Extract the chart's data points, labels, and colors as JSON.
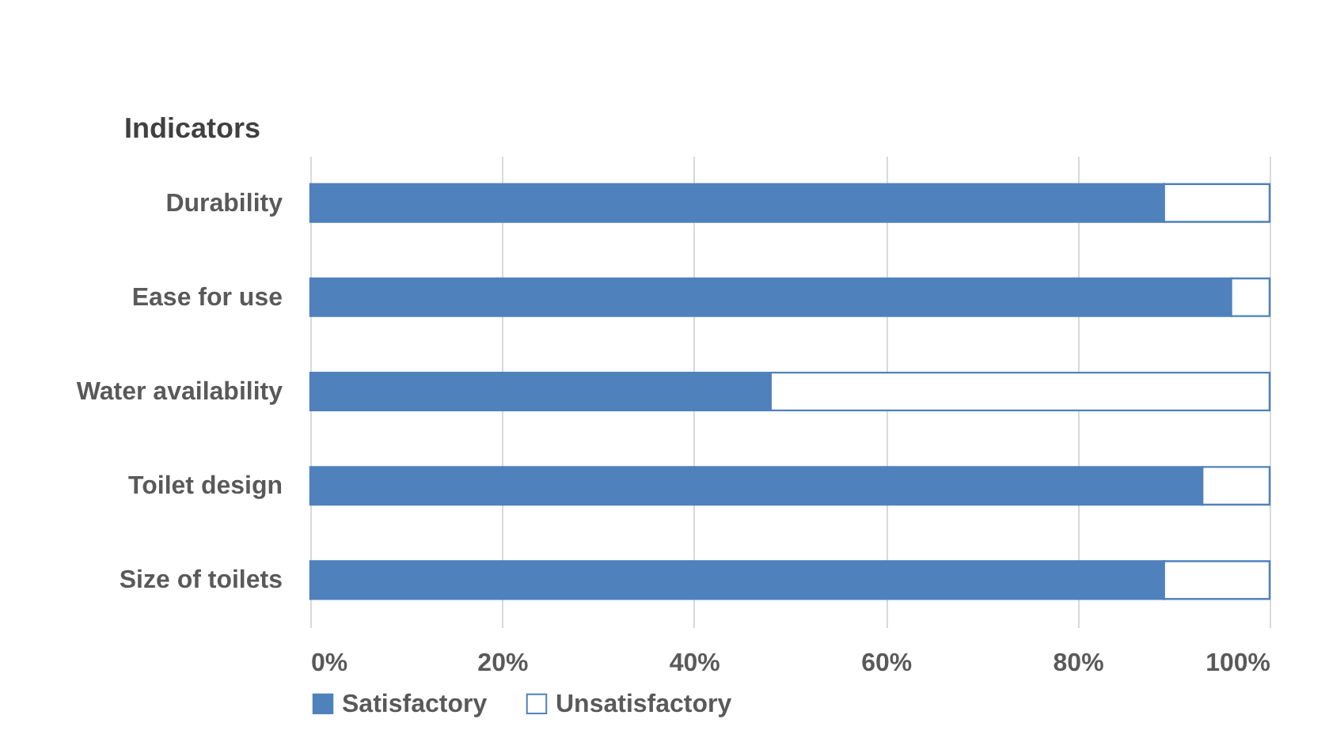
{
  "chart_data": {
    "type": "bar",
    "orientation": "horizontal",
    "stacked": true,
    "ylabel": "Indicators",
    "categories": [
      "Durability",
      "Ease for use",
      "Water availability",
      "Toilet design",
      "Size of toilets"
    ],
    "series": [
      {
        "name": "Satisfactory",
        "color": "#4f81bd",
        "values": [
          89,
          96,
          48,
          93,
          89
        ]
      },
      {
        "name": "Unsatisfactory",
        "color": "#ffffff",
        "values": [
          11,
          4,
          52,
          7,
          11
        ]
      }
    ],
    "xlim": [
      0,
      100
    ],
    "xticks": [
      {
        "value": 0,
        "label": "0%"
      },
      {
        "value": 20,
        "label": "20%"
      },
      {
        "value": 40,
        "label": "40%"
      },
      {
        "value": 60,
        "label": "60%"
      },
      {
        "value": 80,
        "label": "80%"
      },
      {
        "value": 100,
        "label": "100%"
      }
    ],
    "grid": "x",
    "legend": "bottom"
  }
}
